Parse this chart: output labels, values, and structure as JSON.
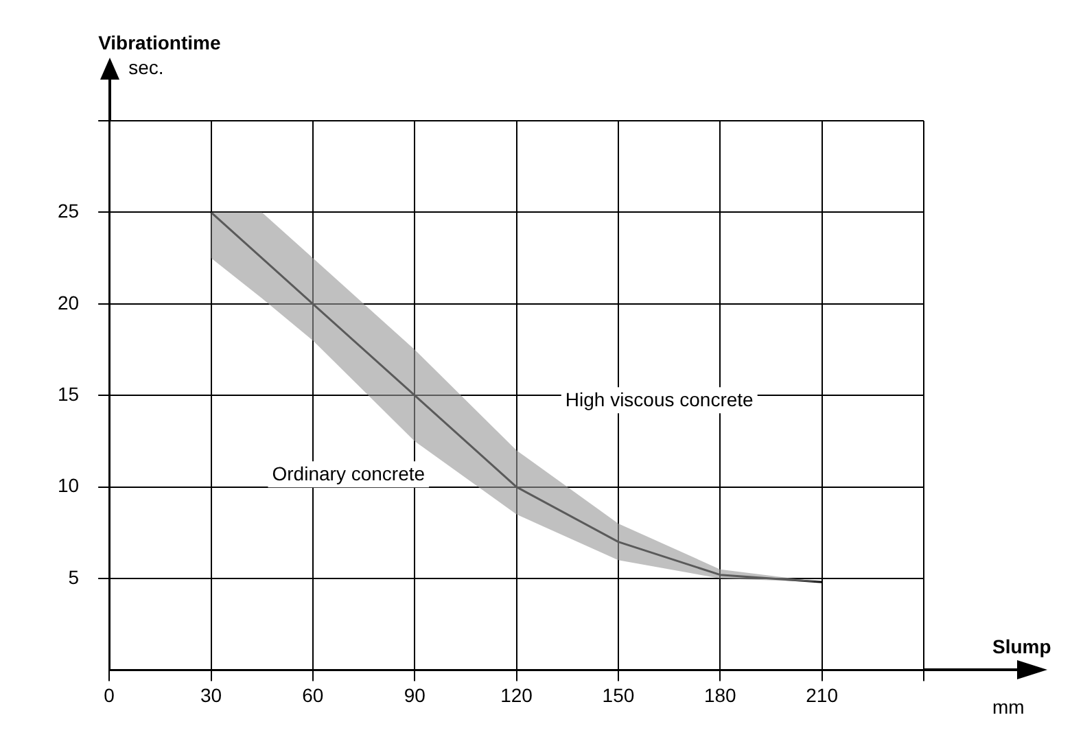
{
  "chart_data": {
    "type": "line",
    "xlabel": "Slump",
    "ylabel": "Vibrationtime",
    "x": [
      30,
      45,
      60,
      90,
      120,
      150,
      180,
      210
    ],
    "series": [
      {
        "color": "#000000",
        "values": [
          25,
          22.5,
          20,
          15,
          10,
          7,
          5.2,
          4.8
        ],
        "lower": [
          22.5,
          20.3,
          18,
          12.5,
          8.5,
          6,
          5,
          4.8
        ],
        "upper": [
          25,
          25,
          22.5,
          17.5,
          12,
          8,
          5.5,
          4.8
        ]
      }
    ],
    "xlim": [
      0,
      240
    ],
    "xticks": [
      0,
      30,
      60,
      90,
      120,
      150,
      180,
      210,
      {
        "value": 240,
        "label": null
      }
    ],
    "ylim": [
      0,
      30
    ],
    "yticks": [
      5,
      10,
      15,
      20,
      25,
      {
        "value": 30,
        "label": null
      }
    ],
    "grid": true,
    "marker": "none",
    "line_style": "solid",
    "annotations": [
      "sec.",
      "mm",
      "Ordinary concrete",
      "High viscous concrete"
    ]
  }
}
